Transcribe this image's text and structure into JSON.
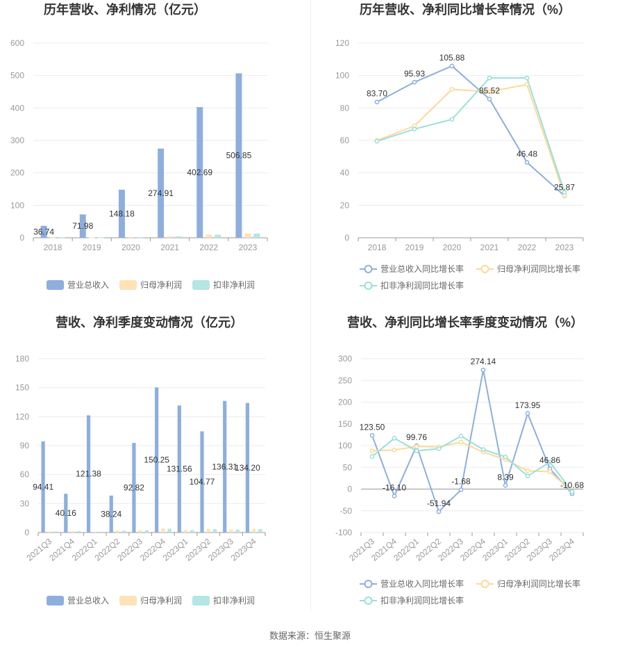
{
  "colors": {
    "revenue": "#8eaede",
    "net_profit": "#fde3b7",
    "deducted_profit": "#b3e6e4",
    "revenue_line": "#8eaede",
    "net_profit_line": "#fcd99a",
    "deducted_profit_line": "#99e0d9",
    "grid": "#ebebeb",
    "axis": "#999999"
  },
  "footer": {
    "source": "数据来源：恒生聚源"
  },
  "chart_data": [
    {
      "id": "annual_revenue",
      "type": "bar",
      "title": "历年营收、净利情况（亿元）",
      "categories": [
        "2018",
        "2019",
        "2020",
        "2021",
        "2022",
        "2023"
      ],
      "ylim": [
        0,
        600
      ],
      "yticks": [
        0,
        100,
        200,
        300,
        400,
        500,
        600
      ],
      "grid": true,
      "legend_position": "bottom",
      "series": [
        {
          "name": "营业总收入",
          "values": [
            36.74,
            71.98,
            148.18,
            274.91,
            402.69,
            506.85
          ],
          "labels": [
            "36.74",
            "71.98",
            "148.18",
            "274.91",
            "402.69",
            "506.85"
          ]
        },
        {
          "name": "归母净利润",
          "values": [
            0.5,
            1.0,
            2.0,
            4.5,
            10.0,
            13.5
          ]
        },
        {
          "name": "扣非净利润",
          "values": [
            0.4,
            0.9,
            1.8,
            4.2,
            9.5,
            13.0
          ]
        }
      ]
    },
    {
      "id": "annual_growth",
      "type": "line",
      "title": "历年营收、净利同比增长率情况（%）",
      "categories": [
        "2018",
        "2019",
        "2020",
        "2021",
        "2022",
        "2023"
      ],
      "ylim": [
        0,
        120
      ],
      "yticks": [
        0,
        20,
        40,
        60,
        80,
        100,
        120
      ],
      "grid": true,
      "legend_position": "bottom",
      "series": [
        {
          "name": "营业总收入同比增长率",
          "values": [
            83.7,
            95.93,
            105.88,
            85.52,
            46.48,
            25.87
          ],
          "labels": [
            "83.70",
            "95.93",
            "105.88",
            "85.52",
            "46.48",
            "25.87"
          ]
        },
        {
          "name": "归母净利润同比增长率",
          "values": [
            60,
            69,
            91.5,
            90,
            94.5,
            26
          ]
        },
        {
          "name": "扣非净利润同比增长率",
          "values": [
            59.5,
            67,
            73,
            98.5,
            98.5,
            28
          ]
        }
      ]
    },
    {
      "id": "quarterly_revenue",
      "type": "bar",
      "title": "营收、净利季度变动情况（亿元）",
      "categories": [
        "2021Q3",
        "2021Q4",
        "2022Q1",
        "2022Q2",
        "2022Q3",
        "2022Q4",
        "2023Q1",
        "2023Q2",
        "2023Q3",
        "2023Q4"
      ],
      "ylim": [
        0,
        180
      ],
      "yticks": [
        0,
        30,
        60,
        90,
        120,
        150,
        180
      ],
      "grid": true,
      "legend_position": "bottom",
      "series": [
        {
          "name": "营业总收入",
          "values": [
            94.41,
            40.16,
            121.38,
            38.24,
            92.82,
            150.25,
            131.56,
            104.77,
            136.31,
            134.2
          ],
          "labels": [
            "94.41",
            "40.16",
            "121.38",
            "38.24",
            "92.82",
            "150.25",
            "131.56",
            "104.77",
            "136.31",
            "134.20"
          ]
        },
        {
          "name": "归母净利润",
          "values": [
            1.2,
            1.5,
            1.0,
            2.0,
            2.4,
            4.2,
            2.6,
            3.8,
            3.2,
            3.8
          ]
        },
        {
          "name": "扣非净利润",
          "values": [
            1.1,
            1.4,
            0.9,
            1.9,
            2.3,
            4.0,
            2.5,
            3.5,
            3.0,
            3.6
          ]
        }
      ]
    },
    {
      "id": "quarterly_growth",
      "type": "line",
      "title": "营收、净利同比增长率季度变动情况（%）",
      "categories": [
        "2021Q3",
        "2021Q4",
        "2022Q1",
        "2022Q2",
        "2022Q3",
        "2022Q4",
        "2023Q1",
        "2023Q2",
        "2023Q3",
        "2023Q4"
      ],
      "ylim": [
        -100,
        300
      ],
      "yticks": [
        -100,
        -50,
        0,
        50,
        100,
        150,
        200,
        250,
        300
      ],
      "grid": true,
      "legend_position": "bottom",
      "series": [
        {
          "name": "营业总收入同比增长率",
          "values": [
            123.5,
            -16.1,
            99.76,
            -51.94,
            -1.68,
            274.14,
            8.39,
            173.95,
            46.86,
            -10.68
          ],
          "labels": [
            "123.50",
            "-16.10",
            "99.76",
            "-51.94",
            "-1.68",
            "274.14",
            "8.39",
            "173.95",
            "46.86",
            "-10.68"
          ]
        },
        {
          "name": "归母净利润同比增长率",
          "values": [
            88,
            90,
            98,
            97,
            108,
            85,
            68,
            42,
            40,
            -6
          ]
        },
        {
          "name": "扣非净利润同比增长率",
          "values": [
            75,
            117,
            88,
            93,
            122,
            91,
            74,
            30,
            62,
            -6
          ]
        }
      ]
    }
  ]
}
